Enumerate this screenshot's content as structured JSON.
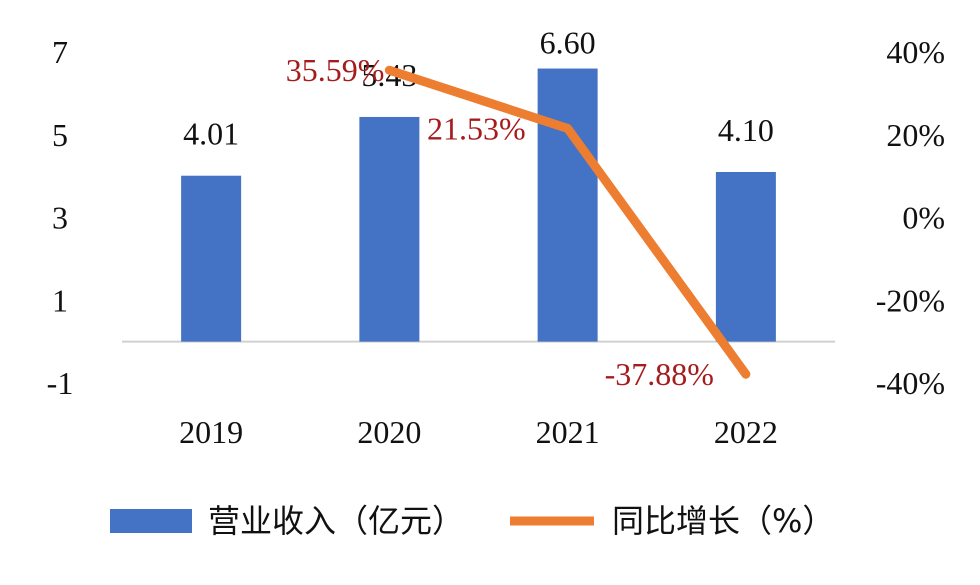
{
  "chart_data": {
    "type": "bar",
    "categories": [
      "2019",
      "2020",
      "2021",
      "2022"
    ],
    "series": [
      {
        "name": "营业收入（亿元）",
        "kind": "bar",
        "axis": "left",
        "values": [
          4.01,
          5.43,
          6.6,
          4.1
        ],
        "labels": [
          "4.01",
          "5.43",
          "6.60",
          "4.10"
        ],
        "color": "#4472C4"
      },
      {
        "name": "同比增长（%）",
        "kind": "line",
        "axis": "right",
        "values": [
          null,
          35.59,
          21.53,
          -37.88
        ],
        "labels": [
          "",
          "35.59%",
          "21.53%",
          "-37.88%"
        ],
        "color": "#ED7D31",
        "label_color": "#A61C1C"
      }
    ],
    "y_left": {
      "ylim": [
        -1,
        7
      ],
      "ticks": [
        -1,
        1,
        3,
        5,
        7
      ],
      "tick_labels": [
        "-1",
        "1",
        "3",
        "5",
        "7"
      ]
    },
    "y_right": {
      "ylim": [
        -40,
        40
      ],
      "ticks": [
        -40,
        -20,
        0,
        20,
        40
      ],
      "tick_labels": [
        "-40%",
        "-20%",
        "0%",
        "20%",
        "40%"
      ]
    },
    "grid": false,
    "legend": "bottom",
    "title": "",
    "xlabel": "",
    "ylabel": ""
  }
}
